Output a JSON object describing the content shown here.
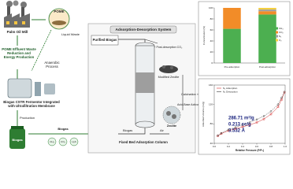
{
  "left": {
    "mill": "Palm Oil Mill",
    "pome": "POME",
    "liquid_waste": "Liquid Waste",
    "anaerobic": "Anaerobic Process",
    "effluent": "POME Effluent Waste Reduction and Energy Production",
    "cstr": "Biogas CSTR Fermentor Integrated with Ultrafiltration Membrane",
    "production": "Production",
    "biogas_arrow": "Biogas",
    "gases": [
      "CH₄",
      "CO₂",
      "H₂S"
    ],
    "jar": "Biogas"
  },
  "center": {
    "title": "Adsorption-Desorption System",
    "purified": "Purified Biogas",
    "air_co2": "Air + Post-desorption CO₂",
    "modified_zeolite": "Modified Zeolite",
    "calcination": "Calcination + Pelleting",
    "activation": "Acid-Base Activation",
    "zeolite": "Zeolite",
    "biogas_in": "Biogas",
    "air_in": "Air",
    "column": "Fixed Bed Adsorption Column"
  },
  "bar_chart": {
    "type": "bar",
    "y_label": "Concentration (%)",
    "categories": [
      "Pre-adsorption",
      "Post-adsorption"
    ],
    "series": [
      {
        "name": "CH₄",
        "color": "#4caf50",
        "values": [
          62,
          88
        ]
      },
      {
        "name": "CO₂",
        "color": "#f28c28",
        "values": [
          38,
          6
        ]
      },
      {
        "name": "N₂",
        "color": "#9e9e9e",
        "values": [
          0,
          3
        ]
      },
      {
        "name": "O₂",
        "color": "#f4d03f",
        "values": [
          0,
          3
        ]
      }
    ],
    "ylim": [
      0,
      100
    ],
    "yticks": [
      0,
      20,
      40,
      60,
      80,
      100
    ]
  },
  "isotherm": {
    "type": "scatter",
    "x_label": "Relative Pressure (P/P₀)",
    "y_label": "Adsorbed Volume (cc/g)",
    "x": [
      0.05,
      0.1,
      0.2,
      0.3,
      0.4,
      0.5,
      0.6,
      0.7,
      0.8,
      0.9,
      0.95,
      0.99
    ],
    "series": [
      {
        "name": "N₂ Adsorption",
        "color": "#d32f2f",
        "values": [
          55,
          60,
          66,
          70,
          74,
          78,
          83,
          90,
          100,
          115,
          130,
          145
        ]
      },
      {
        "name": "N₂ Desorption",
        "color": "#333333",
        "values": [
          56,
          61,
          68,
          73,
          78,
          83,
          89,
          96,
          106,
          120,
          134,
          146
        ]
      }
    ],
    "xlim": [
      0,
      1
    ],
    "xticks": [
      {
        "value": 0,
        "label": "0.0"
      },
      {
        "value": 0.2,
        "label": "0.2"
      },
      {
        "value": 0.4,
        "label": "0.4"
      },
      {
        "value": 0.6,
        "label": "0.6"
      },
      {
        "value": 0.8,
        "label": "0.8"
      },
      {
        "value": 1,
        "label": "1.0"
      }
    ],
    "ylim": [
      40,
      160
    ],
    "yticks": [
      40,
      80,
      120,
      160
    ],
    "annotations": [
      "286.71 m²/g",
      "0.213 cc/g",
      "3.532 Å"
    ]
  }
}
